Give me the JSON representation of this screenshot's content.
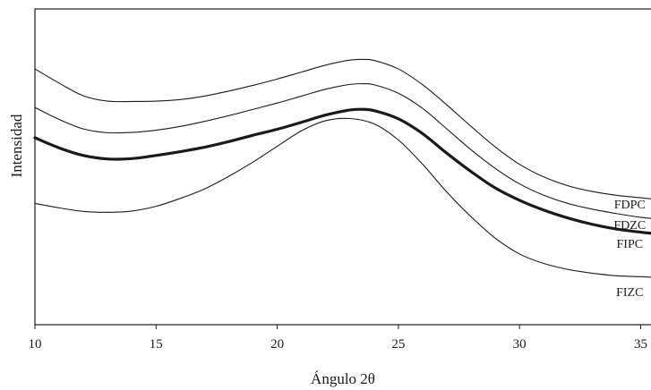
{
  "chart_data": {
    "type": "line",
    "title": "",
    "xlabel": "Ángulo 2θ",
    "ylabel": "Intensidad",
    "xlim": [
      10,
      35.5
    ],
    "ylim": [
      0,
      100
    ],
    "xticks": [
      "10",
      "15",
      "20",
      "25",
      "30",
      "35"
    ],
    "yticks": [],
    "grid": false,
    "legend": "none",
    "series": [
      {
        "name": "FDPC",
        "color": "#1a1a1a",
        "emphasis": false,
        "x": [
          10,
          11,
          12,
          13,
          14,
          15,
          16,
          17,
          18,
          19,
          20,
          21,
          22,
          23,
          23.5,
          24,
          25,
          26,
          27,
          28,
          29,
          30,
          31,
          32,
          33,
          34,
          35,
          35.5
        ],
        "y": [
          81,
          76.5,
          72.5,
          70.8,
          70.7,
          70.8,
          71.3,
          72.4,
          74,
          75.8,
          77.8,
          80,
          82.2,
          83.8,
          84,
          83.7,
          81,
          76,
          69.6,
          62.8,
          56.3,
          50.8,
          46.8,
          44,
          42.2,
          41,
          40.2,
          39.8
        ]
      },
      {
        "name": "FDZC",
        "color": "#1a1a1a",
        "emphasis": false,
        "x": [
          10,
          11,
          12,
          13,
          14,
          15,
          16,
          17,
          18,
          19,
          20,
          21,
          22,
          23,
          23.5,
          24,
          25,
          26,
          27,
          28,
          29,
          30,
          31,
          32,
          33,
          34,
          35,
          35.5
        ],
        "y": [
          68.8,
          65,
          62,
          60.8,
          60.9,
          61.6,
          62.8,
          64.4,
          66.2,
          68.2,
          70.2,
          72.4,
          74.6,
          76.1,
          76.3,
          76,
          73.3,
          68.5,
          62,
          55.4,
          49.5,
          44.6,
          41,
          38.4,
          36.6,
          35.2,
          34,
          33.6
        ]
      },
      {
        "name": "FIPC",
        "color": "#1a1a1a",
        "emphasis": true,
        "x": [
          10,
          11,
          12,
          13,
          14,
          15,
          16,
          17,
          18,
          19,
          20,
          21,
          22,
          23,
          23.5,
          24,
          25,
          26,
          27,
          28,
          29,
          30,
          31,
          32,
          33,
          34,
          35,
          35.5
        ],
        "y": [
          59.2,
          56,
          53.6,
          52.5,
          52.6,
          53.6,
          54.8,
          56.2,
          58,
          60,
          61.9,
          64.1,
          66.4,
          68,
          68.2,
          67.8,
          65.2,
          60.5,
          54.3,
          48.5,
          43.3,
          39.4,
          36.3,
          33.8,
          31.8,
          30.3,
          29.3,
          28.9
        ]
      },
      {
        "name": "FIZC",
        "color": "#1a1a1a",
        "emphasis": false,
        "x": [
          10,
          11,
          12,
          13,
          14,
          15,
          16,
          17,
          18,
          19,
          20,
          21,
          22,
          23,
          24,
          25,
          26,
          27,
          28,
          29,
          30,
          31,
          32,
          33,
          34,
          35,
          35.5
        ],
        "y": [
          38.4,
          37,
          35.9,
          35.6,
          36,
          37.5,
          40,
          43,
          47,
          51.5,
          56.5,
          61.4,
          64.6,
          65.3,
          63.6,
          58.5,
          50.8,
          42,
          34.2,
          27.4,
          22.4,
          19.4,
          17.5,
          16.3,
          15.5,
          15.2,
          15
        ]
      }
    ]
  }
}
